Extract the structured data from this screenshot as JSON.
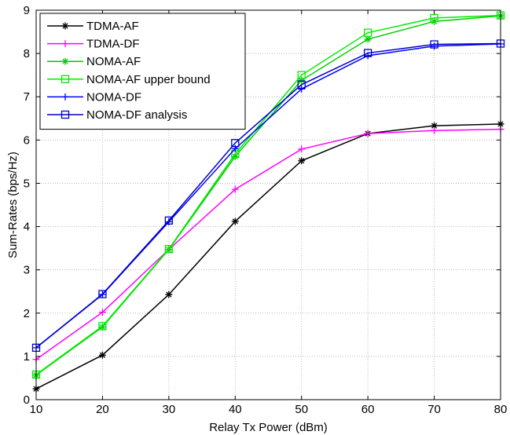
{
  "chart_data": {
    "type": "line",
    "xlabel": "Relay Tx Power (dBm)",
    "ylabel": "Sum-Rates (bps/Hz)",
    "xlim": [
      10,
      80
    ],
    "ylim": [
      0,
      9
    ],
    "xticks": [
      10,
      20,
      30,
      40,
      50,
      60,
      70,
      80
    ],
    "yticks": [
      0,
      1,
      2,
      3,
      4,
      5,
      6,
      7,
      8,
      9
    ],
    "grid": true,
    "legend_position": "top-left",
    "x": [
      10,
      20,
      30,
      40,
      50,
      60,
      70,
      80
    ],
    "series": [
      {
        "name": "TDMA-AF",
        "color": "#000000",
        "marker": "asterisk",
        "values": [
          0.25,
          1.03,
          2.43,
          4.12,
          5.52,
          6.15,
          6.33,
          6.37
        ]
      },
      {
        "name": "TDMA-DF",
        "color": "#ff00ff",
        "marker": "plus",
        "values": [
          0.93,
          2.02,
          3.47,
          4.86,
          5.79,
          6.15,
          6.22,
          6.25
        ]
      },
      {
        "name": "NOMA-AF",
        "color": "#00cc00",
        "marker": "asterisk",
        "values": [
          0.57,
          1.68,
          3.47,
          5.62,
          7.38,
          8.33,
          8.74,
          8.87
        ]
      },
      {
        "name": "NOMA-AF upper bound",
        "color": "#00ee00",
        "marker": "square",
        "values": [
          0.58,
          1.7,
          3.48,
          5.68,
          7.5,
          8.48,
          8.82,
          8.88
        ]
      },
      {
        "name": "NOMA-DF",
        "color": "#0000ff",
        "marker": "plus",
        "values": [
          1.2,
          2.43,
          4.11,
          5.8,
          7.18,
          7.95,
          8.17,
          8.22
        ]
      },
      {
        "name": "NOMA-DF analysis",
        "color": "#0000cc",
        "marker": "square",
        "values": [
          1.2,
          2.44,
          4.14,
          5.93,
          7.28,
          8.01,
          8.21,
          8.23
        ]
      }
    ]
  }
}
